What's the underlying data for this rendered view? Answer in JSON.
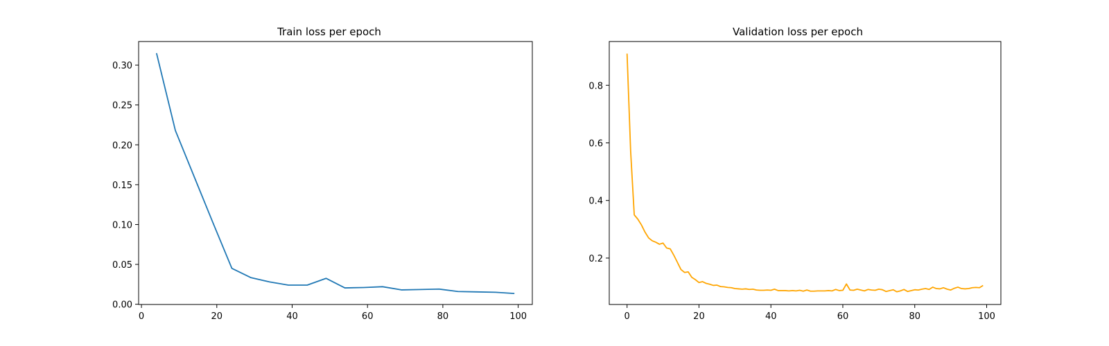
{
  "chart_data": [
    {
      "type": "line",
      "title": "Train loss per epoch",
      "xlabel": "",
      "ylabel": "",
      "xlim": [
        -0.75,
        103.75
      ],
      "ylim": [
        -0.0003,
        0.3296
      ],
      "xticks": [
        0,
        20,
        40,
        60,
        80,
        100
      ],
      "yticks": [
        0.0,
        0.05,
        0.1,
        0.15,
        0.2,
        0.25,
        0.3
      ],
      "ytick_decimals": 2,
      "grid": false,
      "series": [
        {
          "color": "#1f77b4",
          "x": [
            4,
            9,
            14,
            19,
            24,
            29,
            34,
            39,
            44,
            49,
            54,
            59,
            64,
            69,
            74,
            79,
            84,
            89,
            94,
            99
          ],
          "y": [
            0.315,
            0.218,
            0.16,
            0.102,
            0.045,
            0.0335,
            0.028,
            0.024,
            0.024,
            0.0325,
            0.0205,
            0.021,
            0.022,
            0.018,
            0.0185,
            0.019,
            0.016,
            0.0155,
            0.015,
            0.0135
          ]
        }
      ]
    },
    {
      "type": "line",
      "title": "Validation loss per epoch",
      "xlabel": "",
      "ylabel": "",
      "xlim": [
        -4.95,
        103.95
      ],
      "ylim": [
        0.0388,
        0.952
      ],
      "xticks": [
        0,
        20,
        40,
        60,
        80,
        100
      ],
      "yticks": [
        0.2,
        0.4,
        0.6,
        0.8
      ],
      "ytick_decimals": 1,
      "grid": false,
      "series": [
        {
          "color": "#ffa500",
          "x": [
            0,
            1,
            2,
            3,
            4,
            5,
            6,
            7,
            8,
            9,
            10,
            11,
            12,
            13,
            14,
            15,
            16,
            17,
            18,
            19,
            20,
            21,
            22,
            23,
            24,
            25,
            26,
            27,
            28,
            29,
            30,
            31,
            32,
            33,
            34,
            35,
            36,
            37,
            38,
            39,
            40,
            41,
            42,
            43,
            44,
            45,
            46,
            47,
            48,
            49,
            50,
            51,
            52,
            53,
            54,
            55,
            56,
            57,
            58,
            59,
            60,
            61,
            62,
            63,
            64,
            65,
            66,
            67,
            68,
            69,
            70,
            71,
            72,
            73,
            74,
            75,
            76,
            77,
            78,
            79,
            80,
            81,
            82,
            83,
            84,
            85,
            86,
            87,
            88,
            89,
            90,
            91,
            92,
            93,
            94,
            95,
            96,
            97,
            98,
            99
          ],
          "y": [
            0.91,
            0.57,
            0.35,
            0.335,
            0.315,
            0.29,
            0.27,
            0.26,
            0.255,
            0.248,
            0.252,
            0.235,
            0.232,
            0.21,
            0.185,
            0.16,
            0.15,
            0.152,
            0.133,
            0.125,
            0.115,
            0.118,
            0.112,
            0.109,
            0.105,
            0.106,
            0.101,
            0.1,
            0.098,
            0.097,
            0.094,
            0.093,
            0.092,
            0.093,
            0.091,
            0.092,
            0.089,
            0.088,
            0.088,
            0.089,
            0.088,
            0.092,
            0.087,
            0.087,
            0.087,
            0.086,
            0.087,
            0.086,
            0.088,
            0.085,
            0.089,
            0.085,
            0.085,
            0.086,
            0.086,
            0.086,
            0.087,
            0.086,
            0.091,
            0.087,
            0.088,
            0.11,
            0.089,
            0.088,
            0.092,
            0.089,
            0.086,
            0.091,
            0.089,
            0.088,
            0.092,
            0.09,
            0.084,
            0.087,
            0.09,
            0.083,
            0.086,
            0.091,
            0.084,
            0.087,
            0.09,
            0.089,
            0.092,
            0.094,
            0.091,
            0.099,
            0.094,
            0.093,
            0.097,
            0.092,
            0.089,
            0.095,
            0.099,
            0.094,
            0.093,
            0.094,
            0.097,
            0.098,
            0.097,
            0.105
          ]
        }
      ]
    }
  ]
}
